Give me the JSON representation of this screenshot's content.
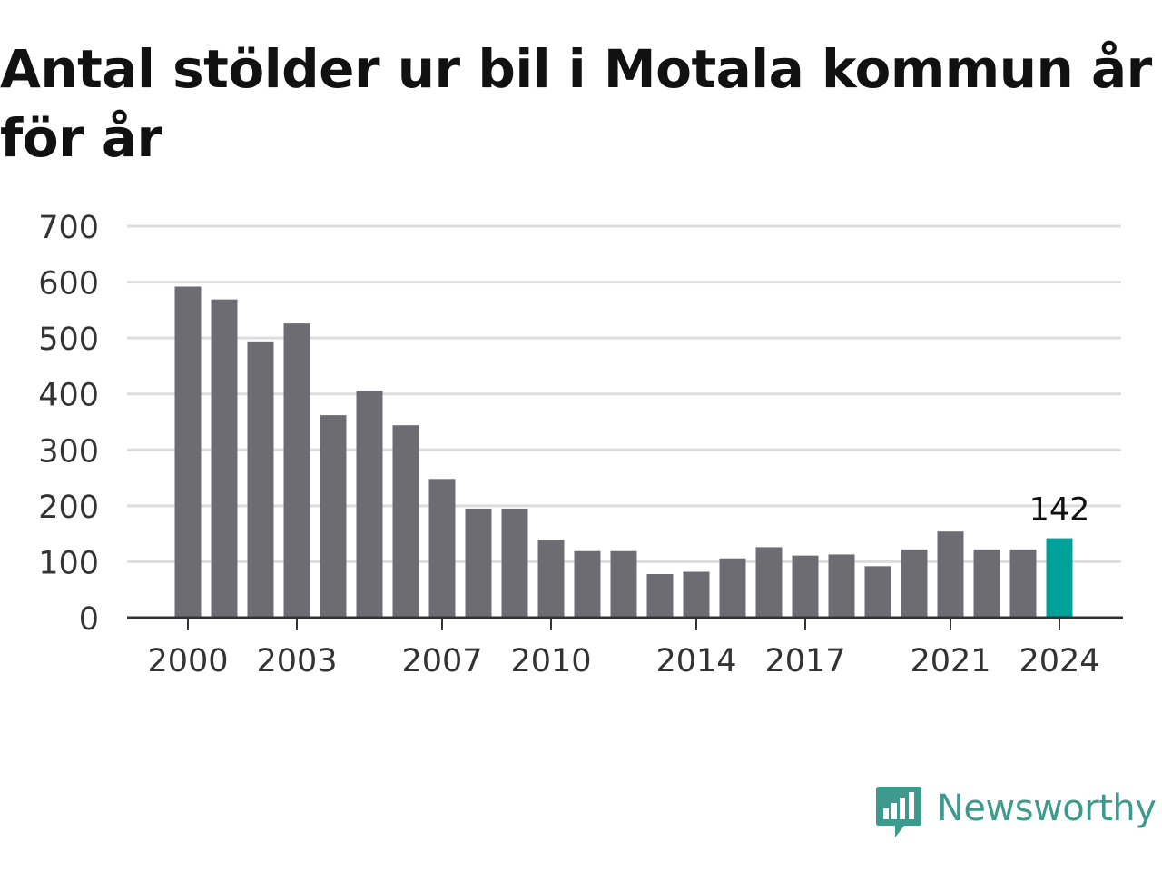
{
  "chart_data": {
    "type": "bar",
    "title": "Antal stölder ur bil i Motala kommun år för år",
    "xlabel": "",
    "ylabel": "",
    "categories": [
      "2000",
      "2001",
      "2002",
      "2003",
      "2004",
      "2005",
      "2006",
      "2007",
      "2008",
      "2009",
      "2010",
      "2011",
      "2012",
      "2013",
      "2014",
      "2015",
      "2016",
      "2017",
      "2018",
      "2019",
      "2020",
      "2021",
      "2022",
      "2023",
      "2024"
    ],
    "values": [
      592,
      569,
      494,
      526,
      362,
      406,
      344,
      248,
      195,
      195,
      139,
      119,
      119,
      78,
      82,
      106,
      126,
      111,
      113,
      92,
      122,
      154,
      122,
      122,
      142
    ],
    "ylim": [
      0,
      700
    ],
    "y_ticks": [
      "0",
      "100",
      "200",
      "300",
      "400",
      "500",
      "600",
      "700"
    ],
    "x_tick_labels": [
      "2000",
      "2003",
      "2007",
      "2010",
      "2014",
      "2017",
      "2021",
      "2024"
    ],
    "highlight": {
      "category": "2024",
      "label": "142"
    },
    "grid": true,
    "colors": {
      "bar": "#6d6c72",
      "highlight": "#00a199",
      "grid": "#dddddd",
      "axis": "#333333",
      "tick_text": "#333333",
      "title": "#111111"
    }
  },
  "brand": {
    "name": "Newsworthy",
    "icon": "newsworthy-logo-icon",
    "color": "#3d9a8d"
  }
}
